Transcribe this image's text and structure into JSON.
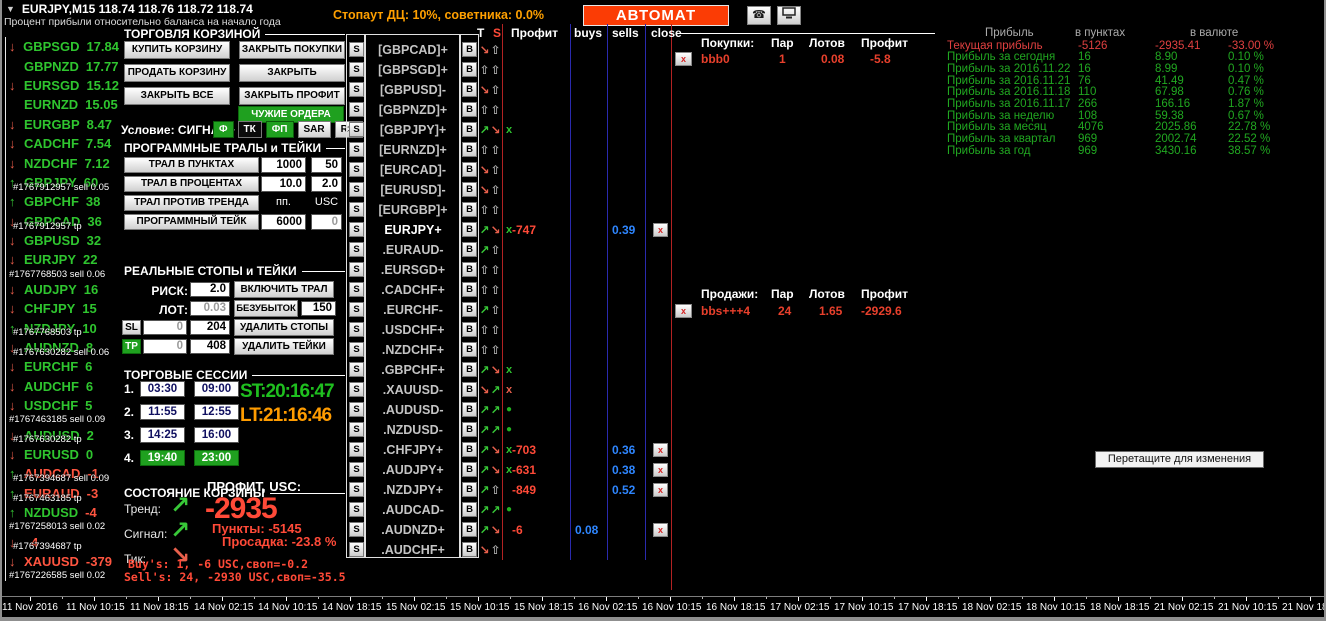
{
  "header": {
    "title": "EURJPY,M15  118.74 118.76 118.72 118.74",
    "subtitle": "Процент прибыли относительно баланса на начало года",
    "stopout": "Стопаут ДЦ: 10%, советника: 0.0%",
    "automat": "АВТОМАТ",
    "icons": [
      "phone-icon",
      "terminal-icon"
    ]
  },
  "colors": {
    "automat_bg": "#FB3C05",
    "accent_orange": "#FFA000",
    "green": "#2FC52F",
    "red": "#FF4A38",
    "blue": "#2E86FF",
    "session_green": "#1FA01F"
  },
  "sidebar": {
    "items": [
      {
        "dir": "down",
        "pair": "GBPSGD",
        "value": "17.84"
      },
      {
        "dir": "",
        "pair": "GBPNZD",
        "value": "17.77"
      },
      {
        "dir": "down",
        "pair": "EURSGD",
        "value": "15.12"
      },
      {
        "dir": "",
        "pair": "EURNZD",
        "value": "15.05"
      },
      {
        "dir": "down",
        "pair": "EURGBP",
        "value": "8.47"
      },
      {
        "dir": "down",
        "pair": "CADCHF",
        "value": "7.54"
      },
      {
        "dir": "down",
        "pair": "NZDCHF",
        "value": "7.12"
      },
      {
        "dir": "up",
        "pair": "GBPJPY",
        "value": "60",
        "overlay": "#1767912957 sell 0.05"
      },
      {
        "dir": "up",
        "pair": "GBPCHF",
        "value": "38"
      },
      {
        "dir": "down",
        "pair": "GBPCAD",
        "value": "36",
        "overlay": "#1767912957 tp"
      },
      {
        "dir": "down",
        "pair": "GBPUSD",
        "value": "32"
      },
      {
        "dir": "down",
        "pair": "EURJPY",
        "value": "22"
      },
      {
        "order": "#1767768503 sell 0.06"
      },
      {
        "dir": "down",
        "pair": "AUDJPY",
        "value": "16"
      },
      {
        "dir": "down",
        "pair": "CHFJPY",
        "value": "15"
      },
      {
        "dir": "up",
        "pair": "NZDJPY",
        "value": "10",
        "overlay": "#1767768503 tp"
      },
      {
        "dir": "down",
        "pair": "AUDNZD",
        "value": "8",
        "overlay": "#1767630282 sell 0.06"
      },
      {
        "dir": "down",
        "pair": "EURCHF",
        "value": "6"
      },
      {
        "dir": "down",
        "pair": "AUDCHF",
        "value": "6"
      },
      {
        "dir": "down",
        "pair": "USDCHF",
        "value": "5"
      },
      {
        "order": "#1767463185 sell 0.09"
      },
      {
        "dir": "down",
        "pair": "AUDUSD",
        "value": "2",
        "overlay": "#1767630282 tp"
      },
      {
        "dir": "down",
        "pair": "EURUSD",
        "value": "0"
      },
      {
        "dir": "up",
        "pair": "AUDCAD",
        "value": "-1",
        "pc": "red",
        "vc": "red",
        "overlay": "#1767394687 sell 0.09"
      },
      {
        "dir": "up",
        "pair": "EURAUD",
        "value": "-3",
        "pc": "red",
        "vc": "red",
        "overlay": "#1767463185 tp"
      },
      {
        "dir": "up",
        "pair": "NZDUSD",
        "value": "-4",
        "vc": "red"
      },
      {
        "order": "#1767258013 sell 0.02"
      },
      {
        "dir": "down",
        "pair": "",
        "value": "4",
        "pc": "red",
        "vc": "red",
        "overlay": "#1767394687 tp"
      },
      {
        "dir": "down",
        "pair": "XAUUSD",
        "value": "-379",
        "pc": "red",
        "vc": "red"
      },
      {
        "order": "#1767226585 sell 0.02"
      }
    ]
  },
  "panel": {
    "trade": {
      "title": "ТОРГОВЛЯ КОРЗИНОЙ",
      "buttons": [
        "КУПИТЬ КОРЗИНУ",
        "ЗАКРЫТЬ ПОКУПКИ",
        "ПРОДАТЬ КОРЗИНУ",
        "ЗАКРЫТЬ ПРОДАЖИ",
        "ЗАКРЫТЬ ВСЕ",
        "ЗАКРЫТЬ ПРОФИТ"
      ],
      "button_names": [
        "buy-basket-button",
        "close-buys-button",
        "sell-basket-button",
        "close-sells-button",
        "close-all-button",
        "close-profit-button"
      ],
      "others_button": "ЧУЖИЕ ОРДЕРА",
      "condition_label": "Условие: СИГНАЛ+",
      "signals": [
        {
          "label": "Ф",
          "style": "green"
        },
        {
          "label": "ТК",
          "style": "dark"
        },
        {
          "label": "ФП",
          "style": "green"
        },
        {
          "label": "SAR",
          "style": "gray"
        },
        {
          "label": "RSI",
          "style": "gray"
        }
      ]
    },
    "trals": {
      "title": "ПРОГРАММНЫЕ ТРАЛЫ и ТЕЙКИ",
      "rows": [
        {
          "button": "ТРАЛ В ПУНКТАХ",
          "f1": "1000",
          "f2": "50",
          "type": "fields"
        },
        {
          "button": "ТРАЛ В ПРОЦЕНТАХ",
          "f1": "10.0",
          "f2": "2.0",
          "type": "fields"
        },
        {
          "button": "ТРАЛ ПРОТИВ ТРЕНДА",
          "f1": "пп.",
          "f2": "USC",
          "type": "labels"
        },
        {
          "button": "ПРОГРАММНЫЙ ТЕЙК",
          "f1": "6000",
          "f2": "0",
          "type": "fields",
          "f2_disabled": true
        }
      ]
    },
    "stops": {
      "title": "РЕАЛЬНЫЕ СТОПЫ и ТЕЙКИ",
      "risk_label": "РИСК:",
      "risk": "2.0",
      "enable_tral": "ВКЛЮЧИТЬ ТРАЛ",
      "lot_label": "ЛОТ:",
      "lot": "0.03",
      "breakeven": "БЕЗУБЫТОК",
      "breakeven_value": "150",
      "sl_label": "SL",
      "sl1": "0",
      "sl2": "204",
      "del_stops": "УДАЛИТЬ СТОПЫ",
      "tp_label": "ТР",
      "tp1": "0",
      "tp2": "408",
      "del_takes": "УДАЛИТЬ ТЕЙКИ"
    },
    "sessions": {
      "title": "ТОРГОВЫЕ СЕССИИ",
      "rows": [
        {
          "n": "1.",
          "from": "03:30",
          "to": "09:00"
        },
        {
          "n": "2.",
          "from": "11:55",
          "to": "12:55"
        },
        {
          "n": "3.",
          "from": "14:25",
          "to": "16:00"
        },
        {
          "n": "4.",
          "from": "19:40",
          "to": "23:00",
          "active": true
        }
      ],
      "st": "ST:20:16:47",
      "lt": "LT:21:16:46"
    },
    "state": {
      "title": "СОСТОЯНИЕ КОРЗИНЫ",
      "trend_label": "Тренд:",
      "signal_label": "Сигнал:",
      "tick_label": "Тик:",
      "trend_dir": "up",
      "signal_dir": "up",
      "tick_dir": "down",
      "profit_label": "ПРОФИТ, USC:",
      "profit": "-2935",
      "points": "Пункты: -5145",
      "drawdown": "Просадка: -23.8 %",
      "buys_line": "Buy's: 1, -6 USC,своп=-0.2",
      "sells_line": "Sell's: 24, -2930 USC,своп=-35.5"
    }
  },
  "basket": {
    "headers": {
      "t": "T",
      "s": "S",
      "profit": "Профит",
      "buys": "buys",
      "sells": "sells",
      "close": "close"
    },
    "rows": [
      {
        "name": "[GBPCAD]+",
        "t": [
          "dn",
          "g"
        ]
      },
      {
        "name": "[GBPSGD]+",
        "t": [
          "g",
          "g"
        ]
      },
      {
        "name": "[GBPUSD]-",
        "t": [
          "dn",
          "g"
        ]
      },
      {
        "name": "[GBPNZD]+",
        "t": [
          "g",
          "g"
        ]
      },
      {
        "name": "[GBPJPY]+",
        "t": [
          "up",
          "dn"
        ],
        "sig": "x"
      },
      {
        "name": "[EURNZD]+",
        "t": [
          "g",
          "g"
        ]
      },
      {
        "name": "[EURCAD]-",
        "t": [
          "dn",
          "g"
        ]
      },
      {
        "name": "[EURUSD]-",
        "t": [
          "dn",
          "g"
        ]
      },
      {
        "name": "[EURGBP]+",
        "t": [
          "g",
          "g"
        ]
      },
      {
        "name": "EURJPY+",
        "white": true,
        "t": [
          "up",
          "dn"
        ],
        "sig": "x",
        "profit": "-747",
        "sells": "0.39",
        "close": true
      },
      {
        "name": ".EURAUD-",
        "t": [
          "up",
          "g"
        ]
      },
      {
        "name": ".EURSGD+",
        "t": [
          "g",
          "g"
        ]
      },
      {
        "name": ".CADCHF+",
        "t": [
          "g",
          "g"
        ]
      },
      {
        "name": ".EURCHF-",
        "t": [
          "up",
          "g"
        ]
      },
      {
        "name": ".USDCHF+",
        "t": [
          "g",
          "g"
        ]
      },
      {
        "name": ".NZDCHF+",
        "t": [
          "g",
          "g"
        ]
      },
      {
        "name": ".GBPCHF+",
        "t": [
          "up",
          "dn"
        ],
        "sig": "x"
      },
      {
        "name": ".XAUUSD-",
        "t": [
          "dn",
          "up"
        ],
        "sig": "xr"
      },
      {
        "name": ".AUDUSD-",
        "t": [
          "up",
          "up"
        ],
        "sig": "dot"
      },
      {
        "name": ".NZDUSD-",
        "t": [
          "up",
          "up"
        ],
        "sig": "dot"
      },
      {
        "name": ".CHFJPY+",
        "t": [
          "up",
          "dn"
        ],
        "sig": "x",
        "profit": "-703",
        "sells": "0.36",
        "close": true
      },
      {
        "name": ".AUDJPY+",
        "t": [
          "up",
          "dn"
        ],
        "sig": "x",
        "profit": "-631",
        "sells": "0.38",
        "close": true
      },
      {
        "name": ".NZDJPY+",
        "t": [
          "up",
          "g"
        ],
        "profit": "-849",
        "sells": "0.52",
        "close": true
      },
      {
        "name": ".AUDCAD-",
        "t": [
          "up",
          "up"
        ],
        "sig": "dot"
      },
      {
        "name": ".AUDNZD+",
        "t": [
          "up",
          "dn"
        ],
        "profit": "-6",
        "buys": "0.08",
        "close": true
      },
      {
        "name": ".AUDCHF+",
        "t": [
          "dn",
          "g"
        ]
      }
    ]
  },
  "buys_table": {
    "headers": [
      "Покупки:",
      "Пар",
      "Лотов",
      "Профит"
    ],
    "rows": [
      {
        "name": "bbb0",
        "pairs": "1",
        "lots": "0.08",
        "profit": "-5.8"
      }
    ]
  },
  "sells_table": {
    "headers": [
      "Продажи:",
      "Пар",
      "Лотов",
      "Профит"
    ],
    "rows": [
      {
        "name": "bbs+++4",
        "pairs": "24",
        "lots": "1.65",
        "profit": "-2929.6"
      }
    ]
  },
  "summary": {
    "headers": [
      "Прибыль",
      "в пунктах",
      "в валюте"
    ],
    "rows": [
      {
        "label": "Текущая прибыль",
        "points": "-5126",
        "currency": "-2935.41",
        "percent": "-33.00 %",
        "negative": true
      },
      {
        "label": "Прибыль за сегодня",
        "points": "16",
        "currency": "8.90",
        "percent": "0.10 %"
      },
      {
        "label": "Прибыль за 2016.11.22",
        "points": "16",
        "currency": "8.99",
        "percent": "0.10 %"
      },
      {
        "label": "Прибыль за 2016.11.21",
        "points": "76",
        "currency": "41.49",
        "percent": "0.47 %"
      },
      {
        "label": "Прибыль за 2016.11.18",
        "points": "110",
        "currency": "67.98",
        "percent": "0.76 %"
      },
      {
        "label": "Прибыль за 2016.11.17",
        "points": "266",
        "currency": "166.16",
        "percent": "1.87 %"
      },
      {
        "label": "Прибыль за неделю",
        "points": "108",
        "currency": "59.38",
        "percent": "0.67 %"
      },
      {
        "label": "Прибыль за месяц",
        "points": "4076",
        "currency": "2025.86",
        "percent": "22.78 %"
      },
      {
        "label": "Прибыль за квартал",
        "points": "969",
        "currency": "2002.74",
        "percent": "22.52 %"
      },
      {
        "label": "Прибыль за год",
        "points": "969",
        "currency": "3430.16",
        "percent": "38.57 %"
      }
    ]
  },
  "tooltip": "Перетащите для изменения",
  "timeline": {
    "labels": [
      "11 Nov 2016",
      "11 Nov 10:15",
      "11 Nov 18:15",
      "14 Nov 02:15",
      "14 Nov 10:15",
      "14 Nov 18:15",
      "15 Nov 02:15",
      "15 Nov 10:15",
      "15 Nov 18:15",
      "16 Nov 02:15",
      "16 Nov 10:15",
      "16 Nov 18:15",
      "17 Nov 02:15",
      "17 Nov 10:15",
      "17 Nov 18:15",
      "18 Nov 02:15",
      "18 Nov 10:15",
      "18 Nov 18:15",
      "21 Nov 02:15",
      "21 Nov 10:15",
      "21 Nov 18:15"
    ]
  }
}
